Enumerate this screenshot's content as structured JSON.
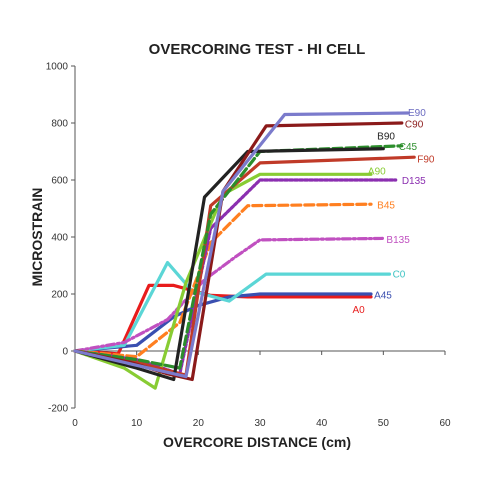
{
  "chart_data": {
    "type": "line",
    "title": "OVERCORING TEST - HI CELL",
    "xlabel": "OVERCORE DISTANCE (cm)",
    "ylabel": "MICROSTRAIN",
    "xlim": [
      0,
      60
    ],
    "ylim": [
      -200,
      1000
    ],
    "xticks": [
      "0",
      "10",
      "20",
      "30",
      "40",
      "50",
      "60"
    ],
    "yticks": [
      "-200",
      "0",
      "200",
      "400",
      "600",
      "800",
      "1000"
    ],
    "grid": false,
    "legend": "labels at line ends",
    "series": [
      {
        "name": "A0",
        "color": "#e81c1c",
        "style": "solid",
        "points": [
          [
            0,
            0
          ],
          [
            7,
            -10
          ],
          [
            12,
            230
          ],
          [
            16,
            230
          ],
          [
            22,
            195
          ],
          [
            28,
            190
          ],
          [
            48,
            190
          ]
        ]
      },
      {
        "name": "A45",
        "color": "#3a4fb0",
        "style": "solid",
        "points": [
          [
            0,
            0
          ],
          [
            10,
            20
          ],
          [
            16,
            120
          ],
          [
            20,
            160
          ],
          [
            25,
            190
          ],
          [
            30,
            200
          ],
          [
            48,
            200
          ]
        ]
      },
      {
        "name": "C0",
        "color": "#5bd6d6",
        "style": "solid",
        "points": [
          [
            0,
            0
          ],
          [
            8,
            20
          ],
          [
            15,
            310
          ],
          [
            19,
            210
          ],
          [
            25,
            175
          ],
          [
            31,
            270
          ],
          [
            51,
            270
          ]
        ]
      },
      {
        "name": "B135",
        "color": "#c050c0",
        "style": "dashdot",
        "points": [
          [
            0,
            0
          ],
          [
            8,
            30
          ],
          [
            15,
            110
          ],
          [
            21,
            250
          ],
          [
            26,
            330
          ],
          [
            30,
            390
          ],
          [
            50,
            395
          ]
        ]
      },
      {
        "name": "B45",
        "color": "#ff7f20",
        "style": "dashed",
        "points": [
          [
            0,
            0
          ],
          [
            10,
            -20
          ],
          [
            17,
            100
          ],
          [
            22,
            380
          ],
          [
            28,
            510
          ],
          [
            48,
            515
          ]
        ]
      },
      {
        "name": "D135",
        "color": "#8b2fb0",
        "style": "dotted",
        "points": [
          [
            0,
            0
          ],
          [
            10,
            -30
          ],
          [
            17,
            -80
          ],
          [
            22,
            430
          ],
          [
            30,
            600
          ],
          [
            52,
            600
          ]
        ]
      },
      {
        "name": "A90",
        "color": "#88cc33",
        "style": "solid",
        "points": [
          [
            0,
            0
          ],
          [
            8,
            -60
          ],
          [
            13,
            -130
          ],
          [
            18,
            240
          ],
          [
            24,
            550
          ],
          [
            30,
            620
          ],
          [
            48,
            620
          ]
        ]
      },
      {
        "name": "F90",
        "color": "#c03a28",
        "style": "solid",
        "points": [
          [
            0,
            0
          ],
          [
            10,
            -40
          ],
          [
            18,
            -85
          ],
          [
            22,
            510
          ],
          [
            30,
            660
          ],
          [
            55,
            680
          ]
        ]
      },
      {
        "name": "C45",
        "color": "#2c8e2c",
        "style": "dashed",
        "points": [
          [
            0,
            0
          ],
          [
            10,
            -30
          ],
          [
            17,
            -60
          ],
          [
            22,
            480
          ],
          [
            30,
            700
          ],
          [
            53,
            720
          ]
        ]
      },
      {
        "name": "B90",
        "color": "#222222",
        "style": "solid",
        "points": [
          [
            0,
            0
          ],
          [
            10,
            -60
          ],
          [
            16,
            -100
          ],
          [
            21,
            540
          ],
          [
            28,
            700
          ],
          [
            50,
            710
          ]
        ]
      },
      {
        "name": "C90",
        "color": "#8b1a1a",
        "style": "solid",
        "points": [
          [
            0,
            0
          ],
          [
            9,
            -40
          ],
          [
            15,
            -80
          ],
          [
            19,
            -100
          ],
          [
            24,
            560
          ],
          [
            31,
            790
          ],
          [
            53,
            800
          ]
        ]
      },
      {
        "name": "E90",
        "color": "#7b7bcc",
        "style": "solid",
        "points": [
          [
            0,
            0
          ],
          [
            10,
            -50
          ],
          [
            18,
            -90
          ],
          [
            24,
            560
          ],
          [
            34,
            830
          ],
          [
            54,
            835
          ]
        ]
      }
    ],
    "labels": [
      {
        "text": "E90",
        "x": 54,
        "y": 835,
        "color": "#6a6ac0"
      },
      {
        "text": "C90",
        "x": 53.5,
        "y": 795,
        "color": "#8b1a1a"
      },
      {
        "text": "B90",
        "x": 49,
        "y": 752,
        "color": "#222222"
      },
      {
        "text": "C45",
        "x": 52.5,
        "y": 715,
        "color": "#2c8e2c"
      },
      {
        "text": "A90",
        "x": 47.5,
        "y": 630,
        "color": "#88cc33"
      },
      {
        "text": "F90",
        "x": 55.5,
        "y": 672,
        "color": "#c03a28"
      },
      {
        "text": "D135",
        "x": 53,
        "y": 597,
        "color": "#8b2fb0"
      },
      {
        "text": "B45",
        "x": 49,
        "y": 510,
        "color": "#ff7f20"
      },
      {
        "text": "B135",
        "x": 50.5,
        "y": 390,
        "color": "#c050c0"
      },
      {
        "text": "C0",
        "x": 51.5,
        "y": 268,
        "color": "#3fc4c4"
      },
      {
        "text": "A45",
        "x": 48.5,
        "y": 195,
        "color": "#3a4fb0"
      },
      {
        "text": "A0",
        "x": 45,
        "y": 143,
        "color": "#e81c1c"
      }
    ]
  }
}
